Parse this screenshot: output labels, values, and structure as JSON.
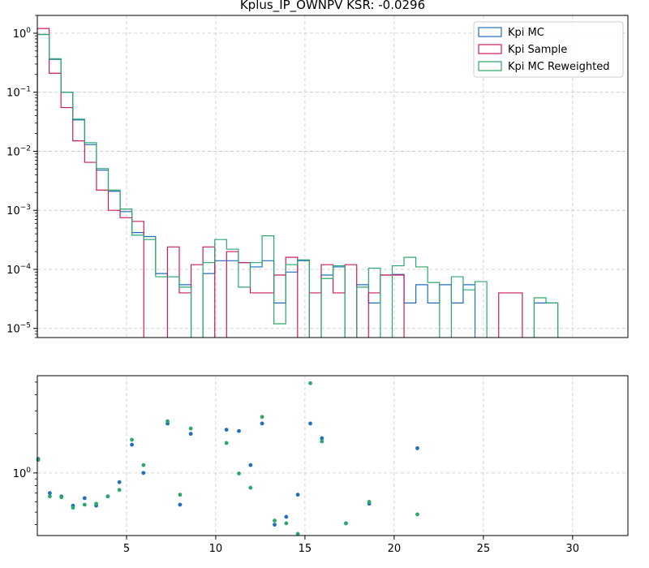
{
  "chart_data": [
    {
      "type": "histogram-step",
      "title": "Kplus_IP_OWNPV   KSR: -0.0296",
      "yscale": "log",
      "xlim": [
        0,
        33.1
      ],
      "ylim": [
        7e-06,
        2.0
      ],
      "grid": true,
      "legend_position": "top-right",
      "bin_width": 0.663,
      "y_ticks": [
        {
          "base": "10",
          "exp": "0",
          "value": 1
        },
        {
          "base": "10",
          "exp": "−1",
          "value": 0.1
        },
        {
          "base": "10",
          "exp": "−2",
          "value": 0.01
        },
        {
          "base": "10",
          "exp": "−3",
          "value": 0.001
        },
        {
          "base": "10",
          "exp": "−4",
          "value": 0.0001
        },
        {
          "base": "10",
          "exp": "−5",
          "value": 1e-05
        }
      ],
      "series": [
        {
          "name": "Kpi MC",
          "color": "#1f6fbf",
          "values": [
            0.95,
            0.36,
            0.1,
            0.034,
            0.013,
            0.0048,
            0.0021,
            0.00095,
            0.00042,
            0.00036,
            8.5e-05,
            7.5e-05,
            5.5e-05,
            0,
            8.5e-05,
            0.00014,
            0.00014,
            0.00013,
            0.00011,
            0.00014,
            2.7e-05,
            9e-05,
            0.00014,
            0,
            8e-05,
            0.00011,
            0,
            5.5e-05,
            2.7e-05,
            8e-05,
            8.2e-05,
            2.7e-05,
            5.5e-05,
            2.7e-05,
            5.5e-05,
            2.7e-05,
            5.5e-05,
            0,
            0,
            0,
            0,
            0,
            2.7e-05,
            2.7e-05,
            0,
            0,
            0,
            0,
            0,
            0
          ]
        },
        {
          "name": "Kpi Sample",
          "color": "#cc1b5c",
          "values": [
            1.2,
            0.21,
            0.055,
            0.015,
            0.0065,
            0.0022,
            0.001,
            0.00075,
            0.00065,
            0,
            0,
            0.00024,
            4e-05,
            0.00012,
            0.00024,
            0,
            0.0002,
            0.00013,
            4e-05,
            4e-05,
            8e-05,
            0.00016,
            0,
            4e-05,
            0.00012,
            4e-05,
            0.00012,
            0,
            4e-05,
            8e-05,
            8e-05,
            0,
            0,
            0,
            0,
            0,
            0,
            0,
            0,
            4e-05,
            4e-05,
            0,
            0,
            0,
            0,
            0,
            0,
            0,
            0,
            0
          ]
        },
        {
          "name": "Kpi MC Reweighted",
          "color": "#2ca86a",
          "values": [
            0.95,
            0.37,
            0.1,
            0.035,
            0.014,
            0.0051,
            0.0022,
            0.00105,
            0.00038,
            0.00032,
            7.5e-05,
            7.5e-05,
            5e-05,
            0,
            0.00013,
            0.00032,
            0.00022,
            5e-05,
            0.00013,
            0.00037,
            1.2e-05,
            0.00012,
            0.000145,
            0,
            7e-05,
            0.000115,
            0,
            5e-05,
            0.000105,
            0,
            0.000115,
            0.00016,
            0.00011,
            6e-05,
            0,
            7.5e-05,
            4.5e-05,
            6.2e-05,
            0,
            0,
            0,
            0,
            3.3e-05,
            2.7e-05,
            0,
            0,
            0,
            0,
            0,
            0
          ]
        }
      ]
    },
    {
      "type": "scatter",
      "yscale": "log",
      "xlim": [
        0,
        33.1
      ],
      "ylim": [
        0.33,
        5.6
      ],
      "grid": true,
      "x_ticks": [
        "5",
        "10",
        "15",
        "20",
        "25",
        "30"
      ],
      "x_tick_values": [
        5,
        10,
        15,
        20,
        25,
        30
      ],
      "y_ticks": [
        {
          "base": "10",
          "exp": "0",
          "value": 1
        }
      ],
      "series": [
        {
          "name": "Kpi MC",
          "color": "#1f6fbf",
          "points": [
            [
              0.05,
              1.28
            ],
            [
              0.7,
              0.7
            ],
            [
              1.35,
              0.66
            ],
            [
              2.0,
              0.56
            ],
            [
              2.65,
              0.64
            ],
            [
              3.3,
              0.56
            ],
            [
              3.95,
              0.66
            ],
            [
              4.6,
              0.85
            ],
            [
              5.3,
              1.65
            ],
            [
              5.95,
              1.0
            ],
            [
              7.3,
              2.4
            ],
            [
              8.0,
              0.57
            ],
            [
              8.6,
              2.0
            ],
            [
              10.6,
              2.15
            ],
            [
              11.3,
              2.1
            ],
            [
              11.95,
              1.15
            ],
            [
              12.6,
              2.4
            ],
            [
              13.3,
              0.4
            ],
            [
              13.95,
              0.46
            ],
            [
              14.6,
              0.68
            ],
            [
              15.3,
              2.4
            ],
            [
              15.95,
              1.85
            ],
            [
              17.3,
              0.41
            ],
            [
              18.6,
              0.58
            ],
            [
              21.3,
              1.55
            ]
          ]
        },
        {
          "name": "Kpi MC Reweighted",
          "color": "#2ca86a",
          "points": [
            [
              0.05,
              1.26
            ],
            [
              0.7,
              0.66
            ],
            [
              1.35,
              0.65
            ],
            [
              2.0,
              0.54
            ],
            [
              2.65,
              0.57
            ],
            [
              3.3,
              0.58
            ],
            [
              3.95,
              0.66
            ],
            [
              4.6,
              0.74
            ],
            [
              5.3,
              1.8
            ],
            [
              5.95,
              1.15
            ],
            [
              7.3,
              2.5
            ],
            [
              8.0,
              0.68
            ],
            [
              8.6,
              2.2
            ],
            [
              10.6,
              1.7
            ],
            [
              11.3,
              0.99
            ],
            [
              11.95,
              0.77
            ],
            [
              12.6,
              2.7
            ],
            [
              13.3,
              0.43
            ],
            [
              13.95,
              0.41
            ],
            [
              14.6,
              0.34
            ],
            [
              15.3,
              4.9
            ],
            [
              15.95,
              1.75
            ],
            [
              17.3,
              0.41
            ],
            [
              18.6,
              0.6
            ],
            [
              21.3,
              0.48
            ]
          ]
        }
      ]
    }
  ]
}
